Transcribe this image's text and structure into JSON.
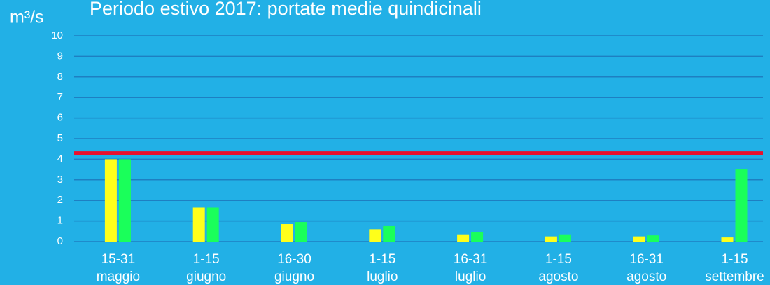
{
  "chart_data": {
    "type": "bar",
    "title": "Periodo estivo 2017: portate medie quindicinali",
    "y_label": "m³/s",
    "categories": [
      [
        "15-31",
        "maggio"
      ],
      [
        "1-15",
        "giugno"
      ],
      [
        "16-30",
        "giugno"
      ],
      [
        "1-15",
        "luglio"
      ],
      [
        "16-31",
        "luglio"
      ],
      [
        "1-15",
        "agosto"
      ],
      [
        "16-31",
        "agosto"
      ],
      [
        "1-15",
        "settembre"
      ]
    ],
    "series": [
      {
        "color": "#ffff1a",
        "values": [
          4.0,
          1.65,
          0.85,
          0.6,
          0.35,
          0.25,
          0.25,
          0.2
        ]
      },
      {
        "color": "#1aff5a",
        "values": [
          4.0,
          1.65,
          0.95,
          0.75,
          0.45,
          0.35,
          0.3,
          3.5
        ]
      }
    ],
    "reference_line": {
      "value": 4.3,
      "color": "#e8112d"
    },
    "ylim": [
      0,
      10
    ],
    "yticks": [
      0,
      1,
      2,
      3,
      4,
      5,
      6,
      7,
      8,
      9,
      10
    ],
    "grid": true,
    "grid_color": "#1e7fc2"
  }
}
